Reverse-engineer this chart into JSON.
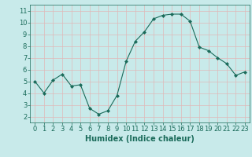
{
  "x": [
    0,
    1,
    2,
    3,
    4,
    5,
    6,
    7,
    8,
    9,
    10,
    11,
    12,
    13,
    14,
    15,
    16,
    17,
    18,
    19,
    20,
    21,
    22,
    23
  ],
  "y": [
    5.0,
    4.0,
    5.1,
    5.6,
    4.6,
    4.7,
    2.7,
    2.2,
    2.5,
    3.8,
    6.7,
    8.4,
    9.2,
    10.3,
    10.6,
    10.7,
    10.7,
    10.1,
    7.9,
    7.6,
    7.0,
    6.5,
    5.5,
    5.8
  ],
  "line_color": "#1a6b5a",
  "marker": "D",
  "marker_size": 2,
  "bg_color": "#c8eaea",
  "grid_color": "#e0b8b8",
  "xlabel": "Humidex (Indice chaleur)",
  "xlim": [
    -0.5,
    23.5
  ],
  "ylim": [
    1.5,
    11.5
  ],
  "yticks": [
    2,
    3,
    4,
    5,
    6,
    7,
    8,
    9,
    10,
    11
  ],
  "xticks": [
    0,
    1,
    2,
    3,
    4,
    5,
    6,
    7,
    8,
    9,
    10,
    11,
    12,
    13,
    14,
    15,
    16,
    17,
    18,
    19,
    20,
    21,
    22,
    23
  ],
  "tick_color": "#1a6b5a",
  "label_color": "#1a6b5a",
  "xlabel_fontsize": 7,
  "tick_fontsize": 6,
  "fig_width": 3.2,
  "fig_height": 2.0,
  "dpi": 100
}
